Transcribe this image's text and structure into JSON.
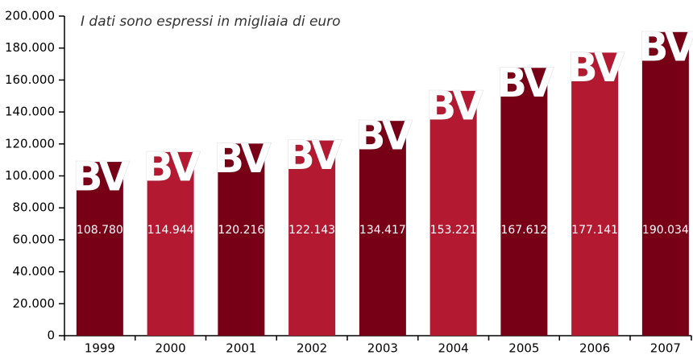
{
  "chart_data": {
    "type": "bar",
    "subtitle": "I dati sono espressi in migliaia di euro",
    "logo_text": "BV",
    "categories": [
      "1999",
      "2000",
      "2001",
      "2002",
      "2003",
      "2004",
      "2005",
      "2006",
      "2007"
    ],
    "values": [
      108780,
      114944,
      120216,
      122143,
      134417,
      153221,
      167612,
      177141,
      190034
    ],
    "value_labels": [
      "108.780",
      "114.944",
      "120.216",
      "122.143",
      "134.417",
      "153.221",
      "167.612",
      "177.141",
      "190.034"
    ],
    "colors": [
      "#780016",
      "#b31a31",
      "#780016",
      "#b31a31",
      "#780016",
      "#b31a31",
      "#780016",
      "#b31a31",
      "#780016"
    ],
    "ylim": [
      0,
      200000
    ],
    "yticks": [
      0,
      {
        "value": 20000,
        "label": "20.000"
      },
      {
        "value": 40000,
        "label": "40.000"
      },
      {
        "value": 60000,
        "label": "60.000"
      },
      {
        "value": 80000,
        "label": "80.000"
      },
      {
        "value": 100000,
        "label": "100.000"
      },
      {
        "value": 120000,
        "label": "120.000"
      },
      {
        "value": 140000,
        "label": "140.000"
      },
      {
        "value": 160000,
        "label": "160.000"
      },
      {
        "value": 180000,
        "label": "180.000"
      },
      {
        "value": 200000,
        "label": "200.000"
      }
    ],
    "grid": false
  }
}
